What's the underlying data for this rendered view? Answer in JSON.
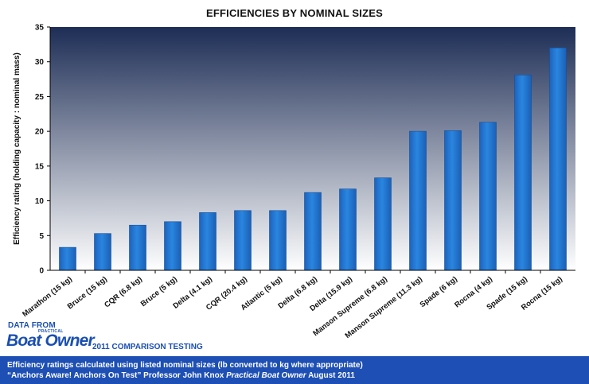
{
  "chart_data": {
    "type": "bar",
    "title": "EFFICIENCIES BY NOMINAL SIZES",
    "xlabel": "",
    "ylabel": "Efficiency rating (holding capacity : nominal mass)",
    "ylim": [
      0,
      35
    ],
    "yticks": [
      0,
      5,
      10,
      15,
      20,
      25,
      30,
      35
    ],
    "grid": false,
    "categories": [
      "Marathon (15 kg)",
      "Bruce (15 kg)",
      "CQR (6.8 kg)",
      "Bruce (5 kg)",
      "Delta (4.1 kg)",
      "CQR (20.4 kg)",
      "Atlantic (5 kg)",
      "Delta (6.8 kg)",
      "Delta (15.9 kg)",
      "Manson Supreme (6.8 kg)",
      "Manson Supreme (11.3 kg)",
      "Spade (6 kg)",
      "Rocna (4 kg)",
      "Spade (15 kg)",
      "Rocna (15 kg)"
    ],
    "values": [
      3.3,
      5.3,
      6.5,
      7.0,
      8.3,
      8.6,
      8.6,
      11.2,
      11.7,
      13.3,
      20.0,
      20.1,
      21.3,
      28.1,
      32.0
    ],
    "colors": {
      "bar": "#1f74d1",
      "plot_bg_top": "#1d2d55",
      "plot_bg_bottom": "#ffffff"
    }
  },
  "source": {
    "data_from": "DATA FROM",
    "logo_small": "PRACTICAL",
    "logo_text": "Boat Owner",
    "comparison": "2011 COMPARISON TESTING"
  },
  "footer": {
    "line1": "Efficiency ratings calculated using listed nominal sizes (lb converted to kg where appropriate)",
    "line2_prefix": "“Anchors Aware! Anchors On Test” Professor John Knox ",
    "line2_pub": "Practical Boat Owner",
    "line2_suffix": " August 2011",
    "bg_color": "#1d4fb4"
  }
}
